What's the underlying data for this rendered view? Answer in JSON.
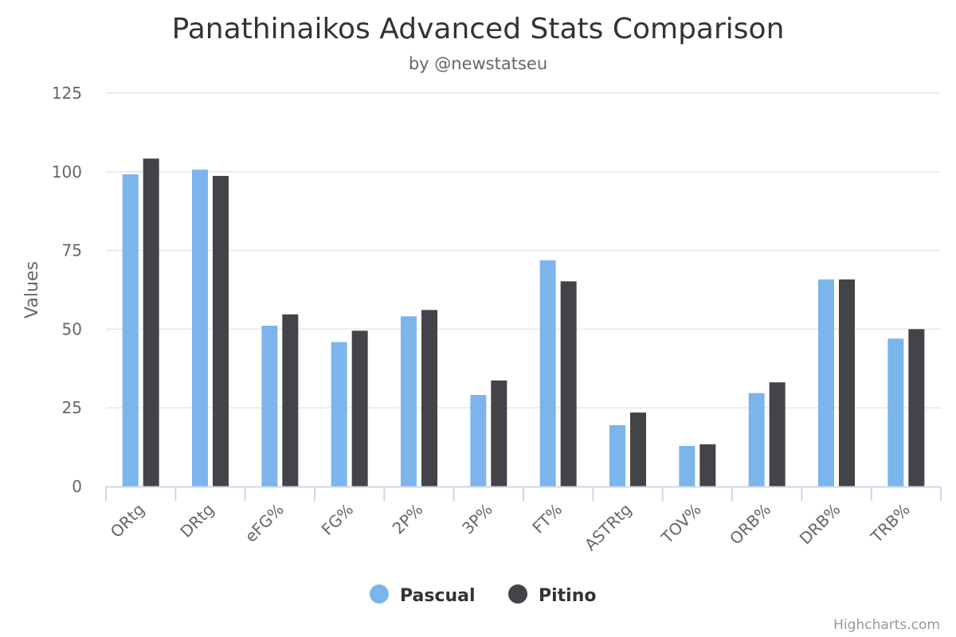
{
  "chart_data": {
    "type": "bar",
    "title": "Panathinaikos Advanced Stats Comparison",
    "subtitle": "by @newstatseu",
    "xlabel": "",
    "ylabel": "Values",
    "ylim": [
      0,
      125
    ],
    "yticks": [
      0,
      25,
      50,
      75,
      100,
      125
    ],
    "grid": true,
    "legend_position": "bottom-center",
    "categories": [
      "ORtg",
      "DRtg",
      "eFG%",
      "FG%",
      "2P%",
      "3P%",
      "FT%",
      "ASTRtg",
      "TOV%",
      "ORB%",
      "DRB%",
      "TRB%"
    ],
    "series": [
      {
        "name": "Pascual",
        "color": "#7cb5ec",
        "values": [
          99.2,
          100.7,
          51.1,
          45.9,
          54.1,
          29.1,
          71.9,
          19.5,
          12.9,
          29.7,
          65.8,
          47.0
        ]
      },
      {
        "name": "Pitino",
        "color": "#434348",
        "values": [
          104.2,
          98.7,
          54.7,
          49.5,
          56.1,
          33.7,
          65.2,
          23.5,
          13.4,
          33.1,
          65.8,
          50.0
        ]
      }
    ],
    "credits": "Highcharts.com"
  }
}
